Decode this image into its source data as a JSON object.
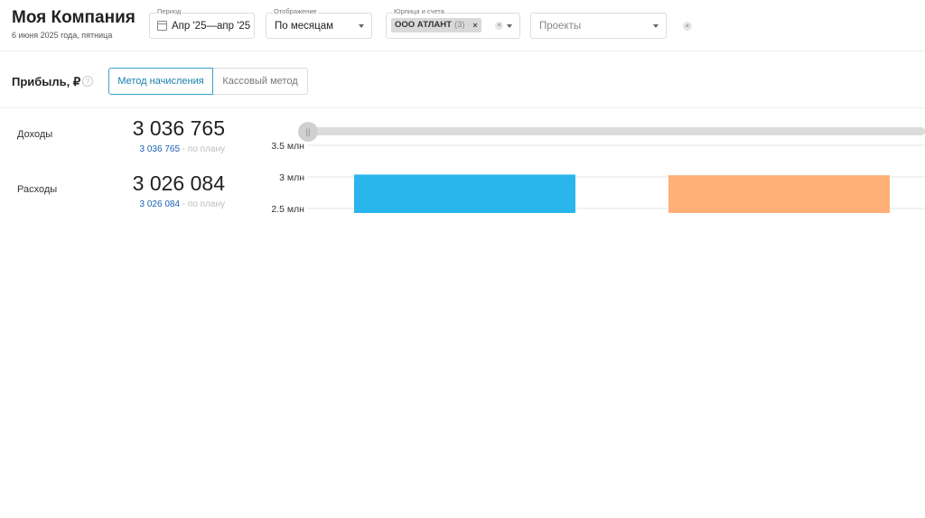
{
  "company": {
    "name": "Моя Компания",
    "date": "6 июня 2025 года, пятница"
  },
  "filters": {
    "period": {
      "label": "Период",
      "value": "Апр '25—апр '25"
    },
    "display": {
      "label": "Отображение",
      "value": "По месяцам"
    },
    "entities": {
      "label": "Юрлица и счета",
      "chip": "ООО АТЛАНТ",
      "chip_count": "(3)"
    },
    "projects": {
      "placeholder": "Проекты"
    }
  },
  "profit": {
    "title": "Прибыль, ₽",
    "method_accrual": "Метод начисления",
    "method_cash": "Кассовый метод"
  },
  "metrics": [
    {
      "label": "Доходы",
      "value": "3 036 765",
      "plan_value": "3 036 765",
      "plan_suffix": "- по плану"
    },
    {
      "label": "Расходы",
      "value": "3 026 084",
      "plan_value": "3 026 084",
      "plan_suffix": "- по плану"
    }
  ],
  "chart_data": {
    "type": "bar",
    "y_ticks": [
      {
        "value": 3500000,
        "label": "3.5 млн"
      },
      {
        "value": 3000000,
        "label": "3 млн"
      },
      {
        "value": 2500000,
        "label": "2.5 млн"
      }
    ],
    "series": [
      {
        "values": [
          3036765
        ],
        "color": "#29b6ec"
      },
      {
        "values": [
          3026084
        ],
        "color": "#ffb077"
      }
    ]
  }
}
